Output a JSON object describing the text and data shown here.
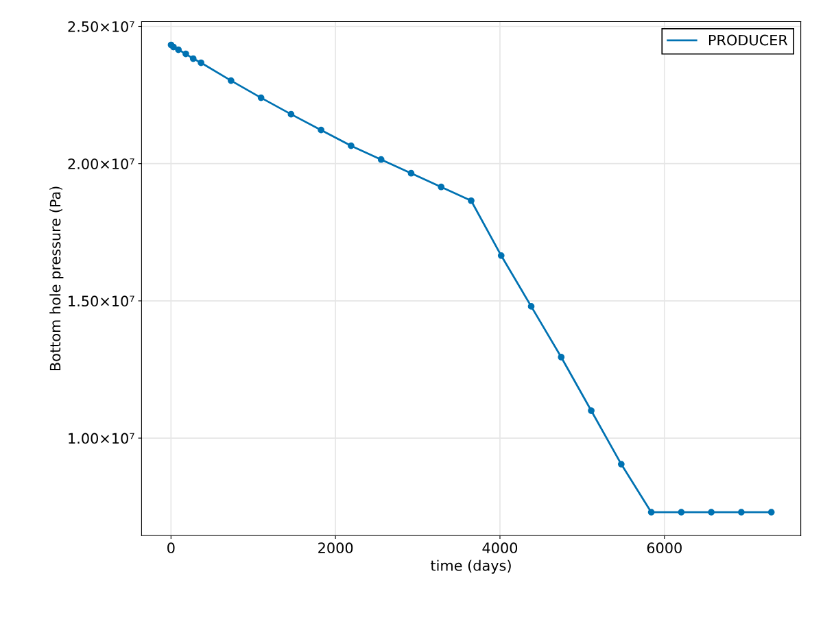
{
  "chart_data": {
    "type": "line",
    "xlabel": "time (days)",
    "ylabel": "Bottom hole pressure (Pa)",
    "x": [
      1,
      30,
      90,
      180,
      270,
      365,
      730,
      1095,
      1460,
      1825,
      2190,
      2555,
      2920,
      3285,
      3650,
      4015,
      4380,
      4745,
      5110,
      5475,
      5840,
      6205,
      6570,
      6935,
      7300
    ],
    "series": [
      {
        "name": "PRODUCER",
        "color": "#0072b2",
        "values": [
          24325000,
          24250000,
          24150000,
          24000000,
          23825000,
          23675000,
          23025000,
          22400000,
          21800000,
          21225000,
          20650000,
          20150000,
          19650000,
          19150000,
          18650000,
          16650000,
          14800000,
          12950000,
          11000000,
          9050000,
          7300000,
          7300000,
          7300000,
          7300000,
          7300000
        ]
      }
    ],
    "xlim": [
      -358,
      7658
    ],
    "xticks": [
      0,
      2000,
      4000,
      6000
    ],
    "ylim": [
      6450000,
      25175000
    ],
    "yticks": [
      {
        "value": 10000000,
        "label": "1.00×10⁷"
      },
      {
        "value": 15000000,
        "label": "1.50×10⁷"
      },
      {
        "value": 20000000,
        "label": "2.00×10⁷"
      },
      {
        "value": 25000000,
        "label": "2.50×10⁷"
      }
    ],
    "grid": true,
    "legend": "top right",
    "marker": "circle",
    "line_style": "solid"
  }
}
